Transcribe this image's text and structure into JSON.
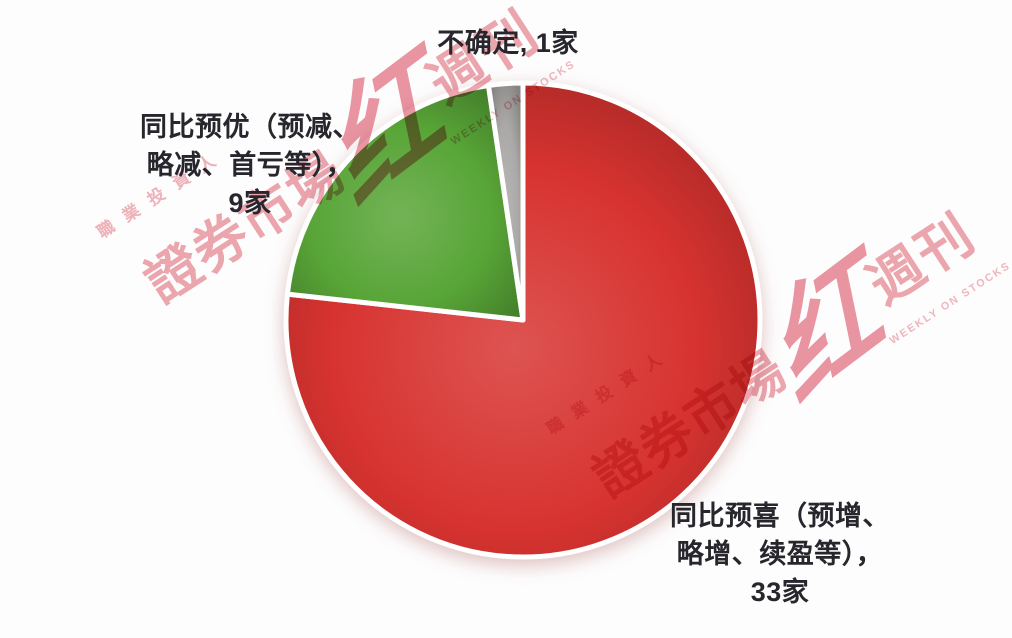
{
  "chart_data": {
    "type": "pie",
    "title": "",
    "total": 43,
    "unit": "家",
    "start_angle_deg": 0,
    "direction": "clockwise",
    "legend_position": "none",
    "labels_position": "outside",
    "slices": [
      {
        "label": "同比预喜（预增、略增、续盈等）",
        "value": 33,
        "color": "#d73330"
      },
      {
        "label": "同比预优（预减、略减、首亏等）",
        "value": 9,
        "color": "#58a537"
      },
      {
        "label": "不确定",
        "value": 1,
        "color": "#aaa9a7"
      }
    ]
  },
  "labels": {
    "uncertain": {
      "lines": [
        "不确定, 1家"
      ]
    },
    "better": {
      "lines": [
        "同比预优（预减、",
        "略减、首亏等），",
        "9家"
      ]
    },
    "positive": {
      "lines": [
        "同比预喜（预增、",
        "略增、续盈等），",
        "33家"
      ]
    }
  },
  "watermark": {
    "small_top": "職業投資人",
    "prefix": "證券市場",
    "script_char": "红",
    "suffix": "週刊",
    "tagline": "WEEKLY ON STOCKS",
    "color": "#eda6af",
    "script_color": "#e98d9b"
  },
  "colors": {
    "background": "#fdfdfd",
    "label_text": "#26262c",
    "slice_gap": "#ffffff"
  }
}
